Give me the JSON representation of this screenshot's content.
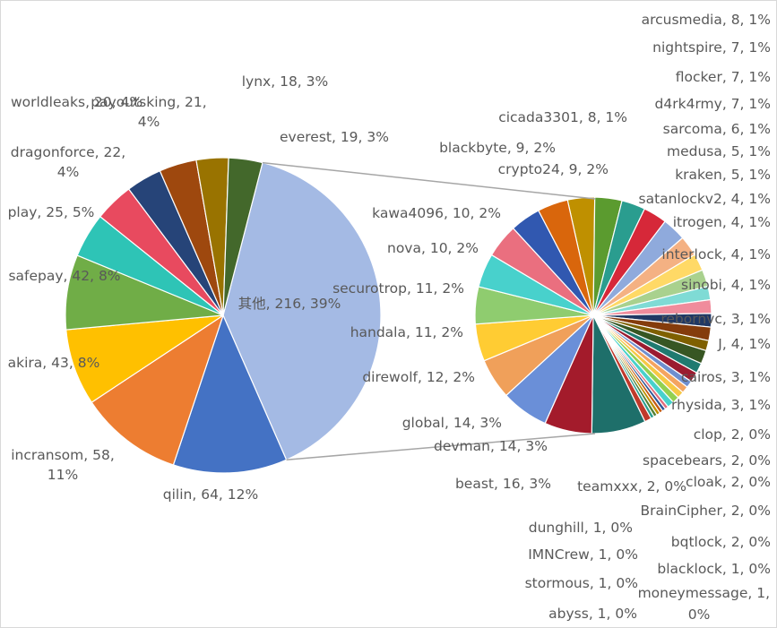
{
  "chart_data": {
    "type": "pie",
    "subtype": "pie-of-pie",
    "title": "",
    "main_pie": [
      {
        "label": "其他",
        "value": 216,
        "percent": "39%",
        "color": "#a4bae4"
      },
      {
        "label": "qilin",
        "value": 64,
        "percent": "12%",
        "color": "#4472c4"
      },
      {
        "label": "incransom",
        "value": 58,
        "percent": "11%",
        "color": "#ed7d31"
      },
      {
        "label": "akira",
        "value": 43,
        "percent": "8%",
        "color": "#ffc000"
      },
      {
        "label": "safepay",
        "value": 42,
        "percent": "8%",
        "color": "#70ad47"
      },
      {
        "label": "play",
        "value": 25,
        "percent": "5%",
        "color": "#2ec4b6"
      },
      {
        "label": "dragonforce",
        "value": 22,
        "percent": "4%",
        "color": "#e84a5f"
      },
      {
        "label": "worldleaks",
        "value": 20,
        "percent": "4%",
        "color": "#264478"
      },
      {
        "label": "payoutsking",
        "value": 21,
        "percent": "4%",
        "color": "#9e480e"
      },
      {
        "label": "lynx",
        "value": 18,
        "percent": "3%",
        "color": "#997300"
      },
      {
        "label": "everest",
        "value": 19,
        "percent": "3%",
        "color": "#43682b"
      }
    ],
    "secondary_pie": [
      {
        "label": "cicada3301",
        "value": 8,
        "percent": "1%",
        "color": "#bf9000"
      },
      {
        "label": "arcusmedia",
        "value": 8,
        "percent": "1%",
        "color": "#5b9b2f"
      },
      {
        "label": "nightspire",
        "value": 7,
        "percent": "1%",
        "color": "#2a9d8f"
      },
      {
        "label": "flocker",
        "value": 7,
        "percent": "1%",
        "color": "#d62839"
      },
      {
        "label": "d4rk4rmy",
        "value": 7,
        "percent": "1%",
        "color": "#8faadc"
      },
      {
        "label": "sarcoma",
        "value": 6,
        "percent": "1%",
        "color": "#f4b183"
      },
      {
        "label": "medusa",
        "value": 5,
        "percent": "1%",
        "color": "#ffd966"
      },
      {
        "label": "kraken",
        "value": 5,
        "percent": "1%",
        "color": "#a9d18e"
      },
      {
        "label": "satanlockv2",
        "value": 4,
        "percent": "1%",
        "color": "#7fdbd5"
      },
      {
        "label": "itrogen",
        "value": 4,
        "percent": "1%",
        "color": "#f08c9c"
      },
      {
        "label": "interlock",
        "value": 4,
        "percent": "1%",
        "color": "#203864"
      },
      {
        "label": "sinobi",
        "value": 4,
        "percent": "1%",
        "color": "#843c0c"
      },
      {
        "label": "rebornvc",
        "value": 3,
        "percent": "1%",
        "color": "#7f6000"
      },
      {
        "label": "J",
        "value": 4,
        "percent": "1%",
        "color": "#375623"
      },
      {
        "label": "cairos",
        "value": 3,
        "percent": "1%",
        "color": "#1f7a70"
      },
      {
        "label": "rhysida",
        "value": 3,
        "percent": "1%",
        "color": "#9b1b30"
      },
      {
        "label": "clop",
        "value": 2,
        "percent": "0%",
        "color": "#6f8fcf"
      },
      {
        "label": "spacebears",
        "value": 2,
        "percent": "0%",
        "color": "#f4a460"
      },
      {
        "label": "cloak",
        "value": 2,
        "percent": "0%",
        "color": "#f6c945"
      },
      {
        "label": "BrainCipher",
        "value": 2,
        "percent": "0%",
        "color": "#92d050"
      },
      {
        "label": "bqtlock",
        "value": 2,
        "percent": "0%",
        "color": "#48d1cc"
      },
      {
        "label": "blacklock",
        "value": 1,
        "percent": "0%",
        "color": "#e06c7c"
      },
      {
        "label": "moneymessage",
        "value": 1,
        "percent": "0%",
        "color": "#2e5597"
      },
      {
        "label": "abyss",
        "value": 1,
        "percent": "0%",
        "color": "#c55a11"
      },
      {
        "label": "stormous",
        "value": 1,
        "percent": "0%",
        "color": "#bf9000"
      },
      {
        "label": "IMNCrew",
        "value": 1,
        "percent": "0%",
        "color": "#548235"
      },
      {
        "label": "dunghill",
        "value": 1,
        "percent": "0%",
        "color": "#2a9d8f"
      },
      {
        "label": "teamxxx",
        "value": 2,
        "percent": "0%",
        "color": "#c0392b"
      },
      {
        "label": "beast",
        "value": 16,
        "percent": "3%",
        "color": "#1e6f6a"
      },
      {
        "label": "devman",
        "value": 14,
        "percent": "3%",
        "color": "#a31b2b"
      },
      {
        "label": "global",
        "value": 14,
        "percent": "3%",
        "color": "#6a8fd8"
      },
      {
        "label": "direwolf",
        "value": 12,
        "percent": "2%",
        "color": "#f0a05a"
      },
      {
        "label": "handala",
        "value": 11,
        "percent": "2%",
        "color": "#ffcc33"
      },
      {
        "label": "securotrop",
        "value": 11,
        "percent": "2%",
        "color": "#8fcc6f"
      },
      {
        "label": "nova",
        "value": 10,
        "percent": "2%",
        "color": "#48d1cc"
      },
      {
        "label": "kawa4096",
        "value": 10,
        "percent": "2%",
        "color": "#ea6f7f"
      },
      {
        "label": "blackbyte",
        "value": 9,
        "percent": "2%",
        "color": "#3158b0"
      },
      {
        "label": "crypto24",
        "value": 9,
        "percent": "2%",
        "color": "#d9660c"
      }
    ]
  }
}
